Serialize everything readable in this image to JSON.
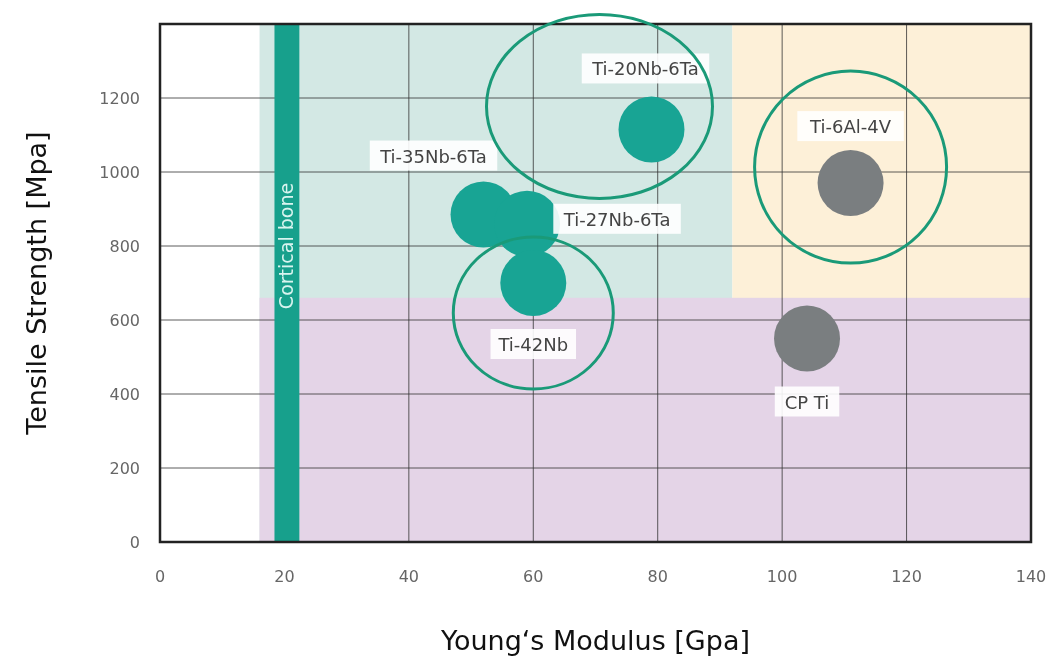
{
  "chart_data": {
    "type": "scatter",
    "xlabel": "Young‘s Modulus [Gpa]",
    "ylabel": "Tensile Strength [Mpa]",
    "xlim": [
      0,
      140
    ],
    "ylim": [
      0,
      1400
    ],
    "xticks": [
      0,
      20,
      40,
      60,
      80,
      100,
      120,
      140
    ],
    "yticks": [
      0,
      200,
      400,
      600,
      800,
      1000,
      1200
    ],
    "grid": true,
    "marker": "circle",
    "series": [
      {
        "name": "Ti-20Nb-6Ta",
        "color": "#18a494",
        "x": [
          79
        ],
        "values": [
          1115
        ]
      },
      {
        "name": "Ti-35Nb-6Ta",
        "color": "#18a494",
        "x": [
          52
        ],
        "values": [
          885
        ]
      },
      {
        "name": "Ti-27Nb-6Ta",
        "color": "#18a494",
        "x": [
          59
        ],
        "values": [
          860
        ]
      },
      {
        "name": "Ti-42Nb",
        "color": "#18a494",
        "x": [
          60
        ],
        "values": [
          700
        ]
      },
      {
        "name": "Ti-6Al-4V",
        "color": "#7a7e80",
        "x": [
          111
        ],
        "values": [
          970
        ]
      },
      {
        "name": "CP Ti",
        "color": "#7a7e80",
        "x": [
          104
        ],
        "values": [
          550
        ]
      }
    ],
    "bands": [
      {
        "axis": "x",
        "from": 16,
        "to": 92,
        "color": "#d3e8e4"
      },
      {
        "axis": "x",
        "from": 92,
        "to": 140,
        "color": "#fdf0d8"
      },
      {
        "axis": "y",
        "from": 0,
        "to": 660,
        "color": "#e4d4e7"
      },
      {
        "axis": "x",
        "from": 18.4,
        "to": 22.4,
        "color": "#17a08c",
        "label": "Cortical bone"
      }
    ]
  }
}
